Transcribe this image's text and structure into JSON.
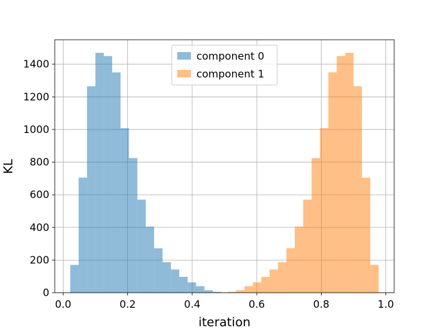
{
  "chart_data": {
    "type": "bar",
    "title": "",
    "xlabel": "iteration",
    "ylabel": "KL",
    "xlim": [
      -0.026,
      1.026
    ],
    "ylim": [
      0,
      1550
    ],
    "x_ticks": [
      0.0,
      0.2,
      0.4,
      0.6,
      0.8,
      1.0
    ],
    "x_tick_labels": [
      "0.0",
      "0.2",
      "0.4",
      "0.6",
      "0.8",
      "1.0"
    ],
    "y_ticks": [
      0,
      200,
      400,
      600,
      800,
      1000,
      1200,
      1400
    ],
    "y_tick_labels": [
      "0",
      "200",
      "400",
      "600",
      "800",
      "1000",
      "1200",
      "1400"
    ],
    "grid": true,
    "legend_position": "top-center",
    "bin_width": 0.026,
    "series": [
      {
        "name": "component 0",
        "color": "#1f77b4",
        "opacity": 0.5,
        "bin_start": 0.022,
        "values": [
          170,
          705,
          1265,
          1470,
          1450,
          1350,
          1008,
          825,
          570,
          405,
          272,
          187,
          142,
          97,
          63,
          40,
          15,
          5,
          0
        ]
      },
      {
        "name": "component 1",
        "color": "#ff7f0e",
        "opacity": 0.5,
        "bin_start": 0.484,
        "values": [
          0,
          5,
          15,
          40,
          63,
          97,
          142,
          187,
          272,
          405,
          570,
          825,
          1008,
          1350,
          1450,
          1470,
          1265,
          705,
          170
        ]
      }
    ]
  }
}
